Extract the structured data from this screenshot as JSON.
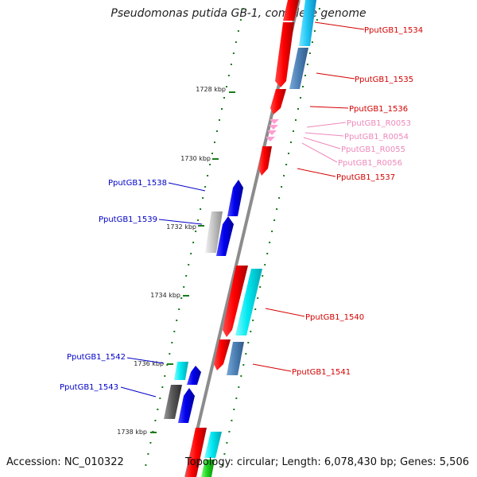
{
  "title": "Pseudomonas putida GB-1, complete genome",
  "footer": {
    "accession": "Accession: NC_010322",
    "summary": "Topology: circular; Length: 6,078,430 bp; Genes: 5,506"
  },
  "colors": {
    "forward_label": "#d40000",
    "reverse_label": "#0000c8",
    "rna_label": "#ee88bb",
    "tick": "#1a7a1a",
    "backbone": "#8c8c8c"
  },
  "ticks": [
    {
      "label": "1728 kbp"
    },
    {
      "label": "1730 kbp"
    },
    {
      "label": "1732 kbp"
    },
    {
      "label": "1734 kbp"
    },
    {
      "label": "1736 kbp"
    },
    {
      "label": "1738 kbp"
    }
  ],
  "genes": [
    {
      "label": "PputGB1_1534",
      "strand": "forward",
      "type": "cds"
    },
    {
      "label": "PputGB1_1535",
      "strand": "forward",
      "type": "cds"
    },
    {
      "label": "PputGB1_1536",
      "strand": "forward",
      "type": "cds"
    },
    {
      "label": "PputGB1_R0053",
      "strand": "forward",
      "type": "rna"
    },
    {
      "label": "PputGB1_R0054",
      "strand": "forward",
      "type": "rna"
    },
    {
      "label": "PputGB1_R0055",
      "strand": "forward",
      "type": "rna"
    },
    {
      "label": "PputGB1_R0056",
      "strand": "forward",
      "type": "rna"
    },
    {
      "label": "PputGB1_1537",
      "strand": "forward",
      "type": "cds"
    },
    {
      "label": "PputGB1_1538",
      "strand": "reverse",
      "type": "cds"
    },
    {
      "label": "PputGB1_1539",
      "strand": "reverse",
      "type": "cds"
    },
    {
      "label": "PputGB1_1540",
      "strand": "forward",
      "type": "cds"
    },
    {
      "label": "PputGB1_1541",
      "strand": "forward",
      "type": "cds"
    },
    {
      "label": "PputGB1_1542",
      "strand": "reverse",
      "type": "cds"
    },
    {
      "label": "PputGB1_1543",
      "strand": "reverse",
      "type": "cds"
    }
  ]
}
